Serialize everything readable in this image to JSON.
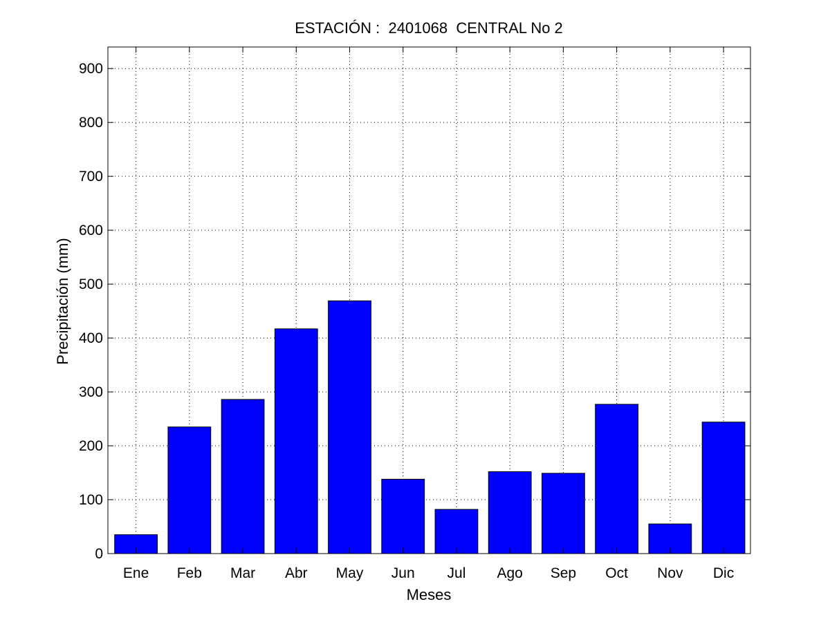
{
  "chart_data": {
    "type": "bar",
    "title": "ESTACIÓN :  2401068  CENTRAL No 2",
    "xlabel": "Meses",
    "ylabel": "Precipitación (mm)",
    "categories": [
      "Ene",
      "Feb",
      "Mar",
      "Abr",
      "May",
      "Jun",
      "Jul",
      "Ago",
      "Sep",
      "Oct",
      "Nov",
      "Dic"
    ],
    "values": [
      35,
      235,
      286,
      417,
      469,
      138,
      82,
      152,
      149,
      277,
      55,
      244
    ],
    "ylim": [
      0,
      940
    ],
    "yticks": [
      0,
      100,
      200,
      300,
      400,
      500,
      600,
      700,
      800,
      900
    ],
    "grid": true,
    "bar_color": "#0000ff"
  }
}
